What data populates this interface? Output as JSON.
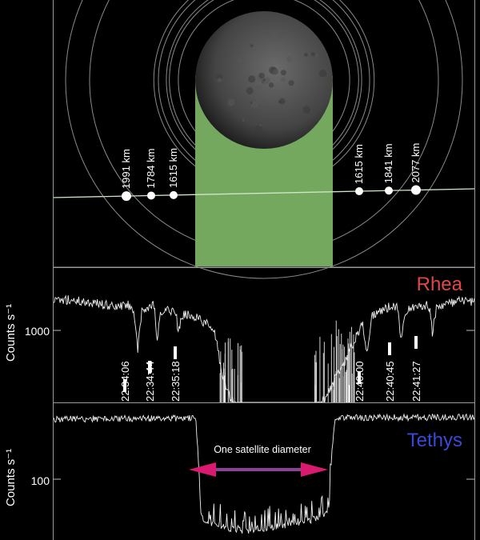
{
  "chart_data": [
    {
      "type": "diagram",
      "panel": "geometry",
      "rings": [
        {
          "label": "1615 km",
          "radius_km": 1615
        },
        {
          "label": "1784 km",
          "radius_km": 1784
        },
        {
          "label": "1841 km",
          "radius_km": 1841
        },
        {
          "label": "1991 km",
          "radius_km": 1991
        },
        {
          "label": "2077 km",
          "radius_km": 2077
        }
      ],
      "markers_left": [
        {
          "label": "1991 km",
          "radius_km": 1991
        },
        {
          "label": "1784 km",
          "radius_km": 1784
        },
        {
          "label": "1615 km",
          "radius_km": 1615
        }
      ],
      "markers_right": [
        {
          "label": "1615 km",
          "radius_km": 1615
        },
        {
          "label": "1841 km",
          "radius_km": 1841
        },
        {
          "label": "2077 km",
          "radius_km": 2077
        }
      ],
      "colors": {
        "shadow": "#74a85e",
        "rings": "#8a8a8a",
        "track": "#cfe6c6"
      }
    },
    {
      "type": "line",
      "panel": "rhea",
      "name": "Rhea",
      "color": "#e04848",
      "ylabel": "Counts s⁻¹",
      "ytick": "1000",
      "y_scale": "log",
      "events": [
        "22:34:06",
        "22:34:44",
        "22:35:18",
        "22:40:00",
        "22:40:45",
        "22:41:27"
      ],
      "profile": [
        [
          0.0,
          1800
        ],
        [
          0.03,
          1880
        ],
        [
          0.1,
          1750
        ],
        [
          0.15,
          1600
        ],
        [
          0.175,
          1700
        ],
        [
          0.19,
          1560
        ],
        [
          0.2,
          650
        ],
        [
          0.21,
          1500
        ],
        [
          0.24,
          1680
        ],
        [
          0.245,
          750
        ],
        [
          0.255,
          1450
        ],
        [
          0.29,
          1550
        ],
        [
          0.295,
          1000
        ],
        [
          0.31,
          1400
        ],
        [
          0.34,
          1320
        ],
        [
          0.37,
          1100
        ],
        [
          0.385,
          900
        ],
        [
          0.395,
          520
        ],
        [
          0.41,
          300
        ],
        [
          0.43,
          220
        ],
        [
          0.445,
          190
        ],
        [
          0.46,
          180
        ],
        [
          0.6,
          180
        ],
        [
          0.62,
          200
        ],
        [
          0.65,
          260
        ],
        [
          0.67,
          380
        ],
        [
          0.7,
          600
        ],
        [
          0.72,
          900
        ],
        [
          0.735,
          1150
        ],
        [
          0.745,
          600
        ],
        [
          0.755,
          1350
        ],
        [
          0.78,
          1520
        ],
        [
          0.81,
          1680
        ],
        [
          0.82,
          1550
        ],
        [
          0.825,
          800
        ],
        [
          0.835,
          1500
        ],
        [
          0.88,
          1700
        ],
        [
          0.895,
          1600
        ],
        [
          0.9,
          900
        ],
        [
          0.91,
          1650
        ],
        [
          0.96,
          1800
        ],
        [
          1.0,
          1820
        ]
      ]
    },
    {
      "type": "line",
      "panel": "tethys",
      "name": "Tethys",
      "color": "#3a48d8",
      "ylabel": "Counts s⁻¹",
      "ytick": "100",
      "y_scale": "log",
      "annotation": "One satellite diameter",
      "profile": [
        [
          0.0,
          285
        ],
        [
          0.33,
          290
        ],
        [
          0.338,
          285
        ],
        [
          0.345,
          120
        ],
        [
          0.35,
          55
        ],
        [
          0.36,
          48
        ],
        [
          0.4,
          44
        ],
        [
          0.45,
          40
        ],
        [
          0.5,
          42
        ],
        [
          0.55,
          45
        ],
        [
          0.6,
          48
        ],
        [
          0.64,
          52
        ],
        [
          0.655,
          60
        ],
        [
          0.66,
          140
        ],
        [
          0.668,
          280
        ],
        [
          0.672,
          292
        ],
        [
          1.0,
          295
        ]
      ]
    }
  ]
}
